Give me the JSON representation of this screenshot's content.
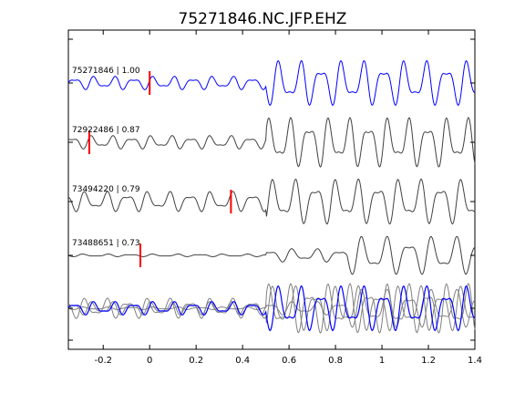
{
  "chart_data": {
    "type": "line",
    "title": "75271846.NC.JFP.EHZ",
    "xlabel": "",
    "ylabel": "",
    "xlim": [
      -0.35,
      1.4
    ],
    "x_ticks": [
      -0.2,
      0,
      0.2,
      0.4,
      0.6,
      0.8,
      1,
      1.2,
      1.4
    ],
    "x_tick_labels": [
      "-0.2",
      "0",
      "0.2",
      "0.4",
      "0.6",
      "0.8",
      "1",
      "1.2",
      "1.4"
    ],
    "grid": false,
    "colors": {
      "reference": "#0000ff",
      "trace": "#404040",
      "stack": "#808080",
      "pick": "#ff0000"
    },
    "traces": [
      {
        "label": "75271846 | 1.00",
        "pick_time": 0.0,
        "color": "reference",
        "segments": [
          {
            "t0": -0.35,
            "t1": 0.5,
            "amp": 0.3,
            "period": 0.085,
            "phase": 0.3
          },
          {
            "t0": 0.5,
            "t1": 1.4,
            "amp": 1.0,
            "period": 0.09,
            "phase": 0.3
          }
        ]
      },
      {
        "label": "72922486 | 0.87",
        "pick_time": -0.26,
        "color": "trace",
        "segments": [
          {
            "t0": -0.35,
            "t1": 0.5,
            "amp": 0.3,
            "period": 0.085,
            "phase": 1.0
          },
          {
            "t0": 0.5,
            "t1": 1.4,
            "amp": 1.1,
            "period": 0.085,
            "phase": 1.0
          }
        ]
      },
      {
        "label": "73494220 | 0.79",
        "pick_time": 0.35,
        "color": "trace",
        "segments": [
          {
            "t0": -0.35,
            "t1": 0.5,
            "amp": 0.45,
            "period": 0.09,
            "phase": 2.0
          },
          {
            "t0": 0.5,
            "t1": 1.4,
            "amp": 1.0,
            "period": 0.09,
            "phase": 2.0
          }
        ]
      },
      {
        "label": "73488651 | 0.73",
        "pick_time": -0.04,
        "color": "trace",
        "segments": [
          {
            "t0": -0.35,
            "t1": 0.5,
            "amp": 0.06,
            "period": 0.1,
            "phase": 0.5
          },
          {
            "t0": 0.5,
            "t1": 0.85,
            "amp": 0.3,
            "period": 0.1,
            "phase": 0.5
          },
          {
            "t0": 0.85,
            "t1": 1.4,
            "amp": 0.85,
            "period": 0.1,
            "phase": 0.5
          }
        ]
      }
    ],
    "stack": {
      "description": "overlay of all traces aligned on pick",
      "series_count": 4,
      "highlight": "reference"
    }
  }
}
